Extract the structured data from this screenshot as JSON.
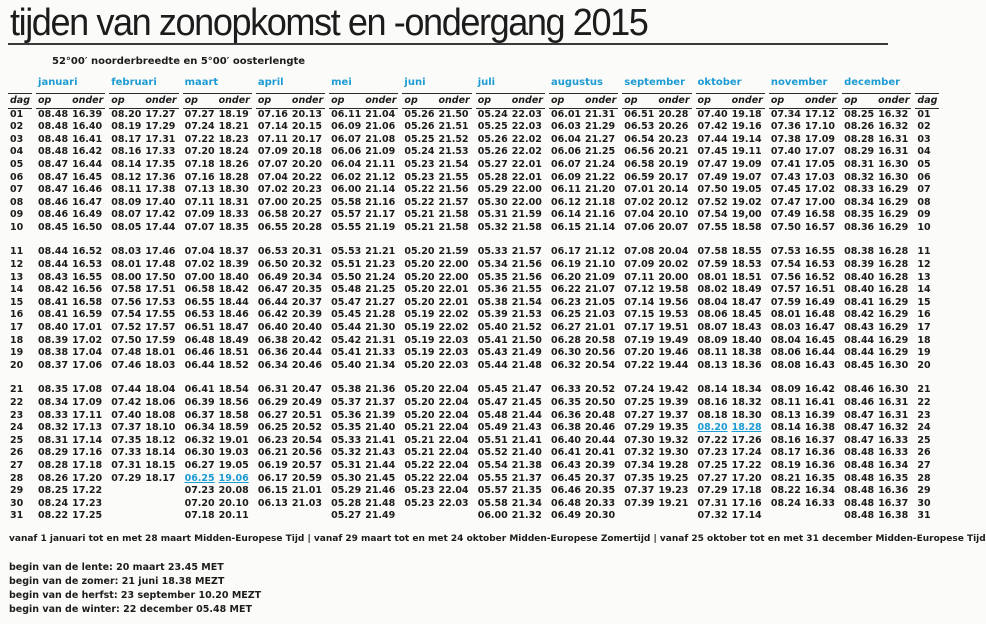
{
  "page": {
    "title": "tijden van zonopkomst en -ondergang 2015",
    "subtitle": "52°00′ noorderbreedte en 5°00′ oosterlengte"
  },
  "table": {
    "accent_color": "#1d9bd3",
    "day_label": "dag",
    "op_label": "op",
    "onder_label": "onder",
    "months": [
      "januari",
      "februari",
      "maart",
      "april",
      "mei",
      "juni",
      "juli",
      "augustus",
      "september",
      "oktober",
      "november",
      "december"
    ],
    "group_breaks_after": [
      "10",
      "20"
    ],
    "highlights": [
      {
        "day": "28",
        "month_index": 2
      },
      {
        "day": "24",
        "month_index": 9
      }
    ],
    "rows": [
      {
        "day": "01",
        "times": [
          "08.48",
          "16.39",
          "08.20",
          "17.27",
          "07.27",
          "18.19",
          "07.16",
          "20.13",
          "06.11",
          "21.04",
          "05.26",
          "21.50",
          "05.24",
          "22.03",
          "06.01",
          "21.31",
          "06.51",
          "20.28",
          "07.40",
          "19.18",
          "07.34",
          "17.12",
          "08.25",
          "16.32"
        ]
      },
      {
        "day": "02",
        "times": [
          "08.48",
          "16.40",
          "08.19",
          "17.29",
          "07.24",
          "18.21",
          "07.14",
          "20.15",
          "06.09",
          "21.06",
          "05.26",
          "21.51",
          "05.25",
          "22.03",
          "06.03",
          "21.29",
          "06.53",
          "20.26",
          "07.42",
          "19.16",
          "07.36",
          "17.10",
          "08.26",
          "16.32"
        ]
      },
      {
        "day": "03",
        "times": [
          "08.48",
          "16.41",
          "08.17",
          "17.31",
          "07.22",
          "18.23",
          "07.11",
          "20.17",
          "06.07",
          "21.08",
          "05.25",
          "21.52",
          "05.26",
          "22.02",
          "06.04",
          "21.27",
          "06.54",
          "20.23",
          "07.44",
          "19.14",
          "07.38",
          "17.09",
          "08.28",
          "16.31"
        ]
      },
      {
        "day": "04",
        "times": [
          "08.48",
          "16.42",
          "08.16",
          "17.33",
          "07.20",
          "18.24",
          "07.09",
          "20.18",
          "06.06",
          "21.09",
          "05.24",
          "21.53",
          "05.26",
          "22.02",
          "06.06",
          "21.25",
          "06.56",
          "20.21",
          "07.45",
          "19.11",
          "07.40",
          "17.07",
          "08.29",
          "16.31"
        ]
      },
      {
        "day": "05",
        "times": [
          "08.47",
          "16.44",
          "08.14",
          "17.35",
          "07.18",
          "18.26",
          "07.07",
          "20.20",
          "06.04",
          "21.11",
          "05.23",
          "21.54",
          "05.27",
          "22.01",
          "06.07",
          "21.24",
          "06.58",
          "20.19",
          "07.47",
          "19.09",
          "07.41",
          "17.05",
          "08.31",
          "16.30"
        ]
      },
      {
        "day": "06",
        "times": [
          "08.47",
          "16.45",
          "08.12",
          "17.36",
          "07.16",
          "18.28",
          "07.04",
          "20.22",
          "06.02",
          "21.12",
          "05.23",
          "21.55",
          "05.28",
          "22.01",
          "06.09",
          "21.22",
          "06.59",
          "20.17",
          "07.49",
          "19.07",
          "07.43",
          "17.03",
          "08.32",
          "16.30"
        ]
      },
      {
        "day": "07",
        "times": [
          "08.47",
          "16.46",
          "08.11",
          "17.38",
          "07.13",
          "18.30",
          "07.02",
          "20.23",
          "06.00",
          "21.14",
          "05.22",
          "21.56",
          "05.29",
          "22.00",
          "06.11",
          "21.20",
          "07.01",
          "20.14",
          "07.50",
          "19.05",
          "07.45",
          "17.02",
          "08.33",
          "16.29"
        ]
      },
      {
        "day": "08",
        "times": [
          "08.46",
          "16.47",
          "08.09",
          "17.40",
          "07.11",
          "18.31",
          "07.00",
          "20.25",
          "05.58",
          "21.16",
          "05.22",
          "21.57",
          "05.30",
          "22.00",
          "06.12",
          "21.18",
          "07.02",
          "20.12",
          "07.52",
          "19.02",
          "07.47",
          "17.00",
          "08.34",
          "16.29"
        ]
      },
      {
        "day": "09",
        "times": [
          "08.46",
          "16.49",
          "08.07",
          "17.42",
          "07.09",
          "18.33",
          "06.58",
          "20.27",
          "05.57",
          "21.17",
          "05.21",
          "21.58",
          "05.31",
          "21.59",
          "06.14",
          "21.16",
          "07.04",
          "20.10",
          "07.54",
          "19,00",
          "07.49",
          "16.58",
          "08.35",
          "16.29"
        ]
      },
      {
        "day": "10",
        "times": [
          "08.45",
          "16.50",
          "08.05",
          "17.44",
          "07.07",
          "18.35",
          "06.55",
          "20.28",
          "05.55",
          "21.19",
          "05.21",
          "21.58",
          "05.32",
          "21.58",
          "06.15",
          "21.14",
          "07.06",
          "20.07",
          "07.55",
          "18.58",
          "07.50",
          "16.57",
          "08.36",
          "16.29"
        ]
      },
      {
        "day": "11",
        "times": [
          "08.44",
          "16.52",
          "08.03",
          "17.46",
          "07.04",
          "18.37",
          "06.53",
          "20.31",
          "05.53",
          "21.21",
          "05.20",
          "21.59",
          "05.33",
          "21.57",
          "06.17",
          "21.12",
          "07.08",
          "20.04",
          "07.58",
          "18.55",
          "07.53",
          "16.55",
          "08.38",
          "16.28"
        ]
      },
      {
        "day": "12",
        "times": [
          "08.44",
          "16.53",
          "08.01",
          "17.48",
          "07.02",
          "18.39",
          "06.50",
          "20.32",
          "05.51",
          "21.23",
          "05.20",
          "22.00",
          "05.34",
          "21.56",
          "06.19",
          "21.10",
          "07.09",
          "20.02",
          "07.59",
          "18.53",
          "07.54",
          "16.53",
          "08.39",
          "16.28"
        ]
      },
      {
        "day": "13",
        "times": [
          "08.43",
          "16.55",
          "08.00",
          "17.50",
          "07.00",
          "18.40",
          "06.49",
          "20.34",
          "05.50",
          "21.24",
          "05.20",
          "22.00",
          "05.35",
          "21.56",
          "06.20",
          "21.09",
          "07.11",
          "20.00",
          "08.01",
          "18.51",
          "07.56",
          "16.52",
          "08.40",
          "16.28"
        ]
      },
      {
        "day": "14",
        "times": [
          "08.42",
          "16.56",
          "07.58",
          "17.51",
          "06.58",
          "18.42",
          "06.47",
          "20.35",
          "05.48",
          "21.25",
          "05.20",
          "22.01",
          "05.36",
          "21.55",
          "06.22",
          "21.07",
          "07.12",
          "19.58",
          "08.02",
          "18.49",
          "07.57",
          "16.51",
          "08.40",
          "16.28"
        ]
      },
      {
        "day": "15",
        "times": [
          "08.41",
          "16.58",
          "07.56",
          "17.53",
          "06.55",
          "18.44",
          "06.44",
          "20.37",
          "05.47",
          "21.27",
          "05.20",
          "22.01",
          "05.38",
          "21.54",
          "06.23",
          "21.05",
          "07.14",
          "19.56",
          "08.04",
          "18.47",
          "07.59",
          "16.49",
          "08.41",
          "16.29"
        ]
      },
      {
        "day": "16",
        "times": [
          "08.41",
          "16.59",
          "07.54",
          "17.55",
          "06.53",
          "18.46",
          "06.42",
          "20.39",
          "05.45",
          "21.28",
          "05.19",
          "22.02",
          "05.39",
          "21.53",
          "06.25",
          "21.03",
          "07.15",
          "19.53",
          "08.06",
          "18.45",
          "08.01",
          "16.48",
          "08.42",
          "16.29"
        ]
      },
      {
        "day": "17",
        "times": [
          "08.40",
          "17.01",
          "07.52",
          "17.57",
          "06.51",
          "18.47",
          "06.40",
          "20.40",
          "05.44",
          "21.30",
          "05.19",
          "22.02",
          "05.40",
          "21.52",
          "06.27",
          "21.01",
          "07.17",
          "19.51",
          "08.07",
          "18.43",
          "08.03",
          "16.47",
          "08.43",
          "16.29"
        ]
      },
      {
        "day": "18",
        "times": [
          "08.39",
          "17.02",
          "07.50",
          "17.59",
          "06.48",
          "18.49",
          "06.38",
          "20.42",
          "05.42",
          "21.31",
          "05.19",
          "22.03",
          "05.41",
          "21.50",
          "06.28",
          "20.58",
          "07.19",
          "19.49",
          "08.09",
          "18.40",
          "08.04",
          "16.45",
          "08.44",
          "16.29"
        ]
      },
      {
        "day": "19",
        "times": [
          "08.38",
          "17.04",
          "07.48",
          "18.01",
          "06.46",
          "18.51",
          "06.36",
          "20.44",
          "05.41",
          "21.33",
          "05.19",
          "22.03",
          "05.43",
          "21.49",
          "06.30",
          "20.56",
          "07.20",
          "19.46",
          "08.11",
          "18.38",
          "08.06",
          "16.44",
          "08.44",
          "16.29"
        ]
      },
      {
        "day": "20",
        "times": [
          "08.37",
          "17.06",
          "07.46",
          "18.03",
          "06.44",
          "18.52",
          "06.34",
          "20.46",
          "05.40",
          "21.34",
          "05.20",
          "22.03",
          "05.44",
          "21.48",
          "06.32",
          "20.54",
          "07.22",
          "19.44",
          "08.13",
          "18.36",
          "08.08",
          "16.43",
          "08.45",
          "16.30"
        ]
      },
      {
        "day": "21",
        "times": [
          "08.35",
          "17.08",
          "07.44",
          "18.04",
          "06.41",
          "18.54",
          "06.31",
          "20.47",
          "05.38",
          "21.36",
          "05.20",
          "22.04",
          "05.45",
          "21.47",
          "06.33",
          "20.52",
          "07.24",
          "19.42",
          "08.14",
          "18.34",
          "08.09",
          "16.42",
          "08.46",
          "16.30"
        ]
      },
      {
        "day": "22",
        "times": [
          "08.34",
          "17.09",
          "07.42",
          "18.06",
          "06.39",
          "18.56",
          "06.29",
          "20.49",
          "05.37",
          "21.37",
          "05.20",
          "22.04",
          "05.47",
          "21.45",
          "06.35",
          "20.50",
          "07.25",
          "19.39",
          "08.16",
          "18.32",
          "08.11",
          "16.41",
          "08.46",
          "16.31"
        ]
      },
      {
        "day": "23",
        "times": [
          "08.33",
          "17.11",
          "07.40",
          "18.08",
          "06.37",
          "18.58",
          "06.27",
          "20.51",
          "05.36",
          "21.39",
          "05.20",
          "22.04",
          "05.48",
          "21.44",
          "06.36",
          "20.48",
          "07.27",
          "19.37",
          "08.18",
          "18.30",
          "08.13",
          "16.39",
          "08.47",
          "16.31"
        ]
      },
      {
        "day": "24",
        "times": [
          "08.32",
          "17.13",
          "07.37",
          "18.10",
          "06.34",
          "18.59",
          "06.25",
          "20.52",
          "05.35",
          "21.40",
          "05.21",
          "22.04",
          "05.49",
          "21.43",
          "06.38",
          "20.46",
          "07.29",
          "19.35",
          "08.20",
          "18.28",
          "08.14",
          "16.38",
          "08.47",
          "16.32"
        ]
      },
      {
        "day": "25",
        "times": [
          "08.31",
          "17.14",
          "07.35",
          "18.12",
          "06.32",
          "19.01",
          "06.23",
          "20.54",
          "05.33",
          "21.41",
          "05.21",
          "22.04",
          "05.51",
          "21.41",
          "06.40",
          "20.44",
          "07.30",
          "19.32",
          "07.22",
          "17.26",
          "08.16",
          "16.37",
          "08.47",
          "16.33"
        ]
      },
      {
        "day": "26",
        "times": [
          "08.29",
          "17.16",
          "07.33",
          "18.14",
          "06.30",
          "19.03",
          "06.21",
          "20.56",
          "05.32",
          "21.43",
          "05.21",
          "22.04",
          "05.52",
          "21.40",
          "06.41",
          "20.41",
          "07.32",
          "19.30",
          "07.23",
          "17.24",
          "08.17",
          "16.36",
          "08.48",
          "16.33"
        ]
      },
      {
        "day": "27",
        "times": [
          "08.28",
          "17.18",
          "07.31",
          "18.15",
          "06.27",
          "19.05",
          "06.19",
          "20.57",
          "05.31",
          "21.44",
          "05.22",
          "22.04",
          "05.54",
          "21.38",
          "06.43",
          "20.39",
          "07.34",
          "19.28",
          "07.25",
          "17.22",
          "08.19",
          "16.36",
          "08.48",
          "16.34"
        ]
      },
      {
        "day": "28",
        "times": [
          "08.26",
          "17.20",
          "07.29",
          "18.17",
          "06.25",
          "19.06",
          "06.17",
          "20.59",
          "05.30",
          "21.45",
          "05.22",
          "22.04",
          "05.55",
          "21.37",
          "06.45",
          "20.37",
          "07.35",
          "19.25",
          "07.27",
          "17.20",
          "08.21",
          "16.35",
          "08.48",
          "16.35"
        ]
      },
      {
        "day": "29",
        "times": [
          "08.25",
          "17.22",
          "",
          "",
          "07.23",
          "20.08",
          "06.15",
          "21.01",
          "05.29",
          "21.46",
          "05.23",
          "22.04",
          "05.57",
          "21.35",
          "06.46",
          "20.35",
          "07.37",
          "19.23",
          "07.29",
          "17.18",
          "08.22",
          "16.34",
          "08.48",
          "16.36"
        ]
      },
      {
        "day": "30",
        "times": [
          "08.24",
          "17.23",
          "",
          "",
          "07.20",
          "20.10",
          "06.13",
          "21.03",
          "05.28",
          "21.48",
          "05.23",
          "22.03",
          "05.58",
          "21.34",
          "06.48",
          "20.33",
          "07.39",
          "19.21",
          "07.31",
          "17.16",
          "08.24",
          "16.33",
          "08.48",
          "16.37"
        ]
      },
      {
        "day": "31",
        "times": [
          "08.22",
          "17.25",
          "",
          "",
          "07.18",
          "20.11",
          "",
          "",
          "05.27",
          "21.49",
          "",
          "",
          "06.00",
          "21.32",
          "06.49",
          "20.30",
          "",
          "",
          "07.32",
          "17.14",
          "",
          "",
          "08.48",
          "16.38"
        ]
      }
    ]
  },
  "footer": {
    "timezone_note": "vanaf 1 januari tot en met 28 maart Midden-Europese Tijd | vanaf 29 maart tot en met 24 oktober Midden-Europese Zomertijd | vanaf 25 oktober tot en met 31 december Midden-Europese Tijd",
    "seasons": [
      "begin van de lente: 20 maart 23.45 MET",
      "begin van de zomer: 21 juni 18.38 MEZT",
      "begin van de herfst: 23 september 10.20 MEZT",
      "begin van de winter: 22 december 05.48 MET"
    ]
  }
}
